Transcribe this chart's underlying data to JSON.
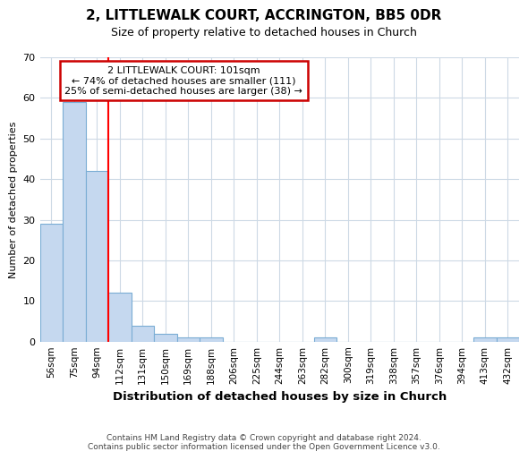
{
  "title": "2, LITTLEWALK COURT, ACCRINGTON, BB5 0DR",
  "subtitle": "Size of property relative to detached houses in Church",
  "xlabel": "Distribution of detached houses by size in Church",
  "ylabel": "Number of detached properties",
  "categories": [
    "56sqm",
    "75sqm",
    "94sqm",
    "112sqm",
    "131sqm",
    "150sqm",
    "169sqm",
    "188sqm",
    "206sqm",
    "225sqm",
    "244sqm",
    "263sqm",
    "282sqm",
    "300sqm",
    "319sqm",
    "338sqm",
    "357sqm",
    "376sqm",
    "394sqm",
    "413sqm",
    "432sqm"
  ],
  "values": [
    29,
    59,
    42,
    12,
    4,
    2,
    1,
    1,
    0,
    0,
    0,
    0,
    1,
    0,
    0,
    0,
    0,
    0,
    0,
    1,
    1
  ],
  "bar_color": "#c5d8ef",
  "bar_edge_color": "#7aadd4",
  "redline_x": 2.5,
  "ylim": [
    0,
    70
  ],
  "yticks": [
    0,
    10,
    20,
    30,
    40,
    50,
    60,
    70
  ],
  "annotation_text": "2 LITTLEWALK COURT: 101sqm\n← 74% of detached houses are smaller (111)\n25% of semi-detached houses are larger (38) →",
  "annotation_box_color": "#ffffff",
  "annotation_box_edge": "#cc0000",
  "footnote1": "Contains HM Land Registry data © Crown copyright and database right 2024.",
  "footnote2": "Contains public sector information licensed under the Open Government Licence v3.0.",
  "background_color": "#ffffff",
  "grid_color": "#cdd9e5"
}
